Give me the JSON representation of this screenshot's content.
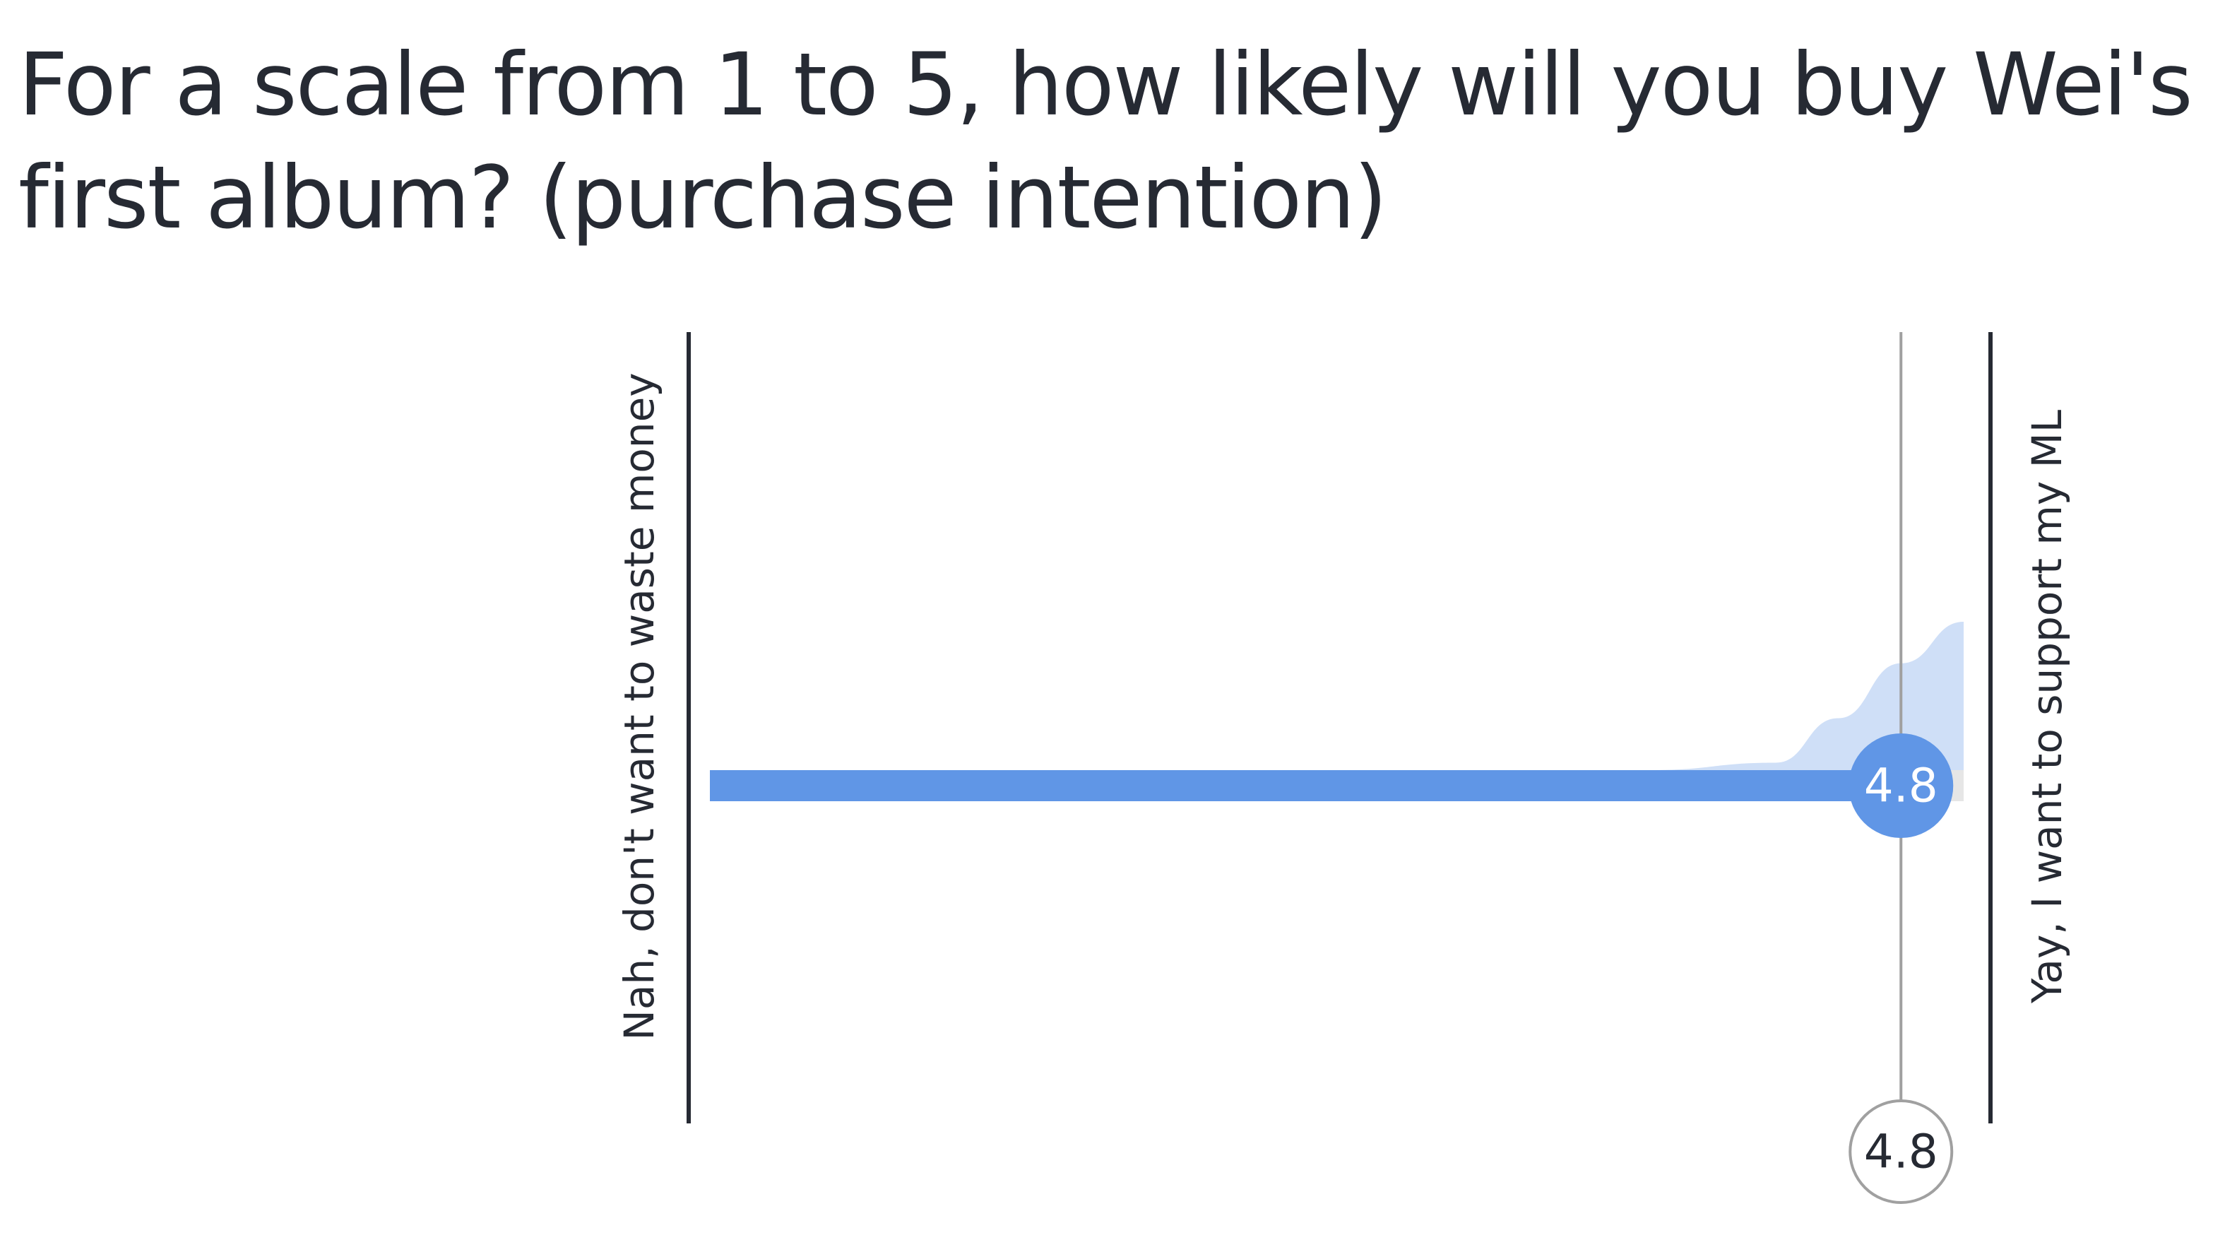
{
  "title": "For a scale from 1 to 5, how likely will you buy Wei's first album? (purchase intention)",
  "chart_data": {
    "type": "scale",
    "scale_min": 1,
    "scale_max": 5,
    "min_label": "Nah, don't want to waste money",
    "max_label": "Yay, I want to support my ML",
    "mean": 4.8,
    "mean_label": "4.8",
    "distribution": [
      {
        "value": 1,
        "share": 0
      },
      {
        "value": 2,
        "share": 0
      },
      {
        "value": 3,
        "share": 0
      },
      {
        "value": 4,
        "share": 0
      },
      {
        "value": 4.4,
        "share": 0.05
      },
      {
        "value": 4.6,
        "share": 0.35
      },
      {
        "value": 4.8,
        "share": 0.72
      },
      {
        "value": 5,
        "share": 1
      }
    ]
  },
  "colors": {
    "bar": "#6096e6",
    "distribution": "#cfdff7",
    "track": "#e6e6e6",
    "axis": "#262a33",
    "marker_line": "#a0a0a0"
  }
}
